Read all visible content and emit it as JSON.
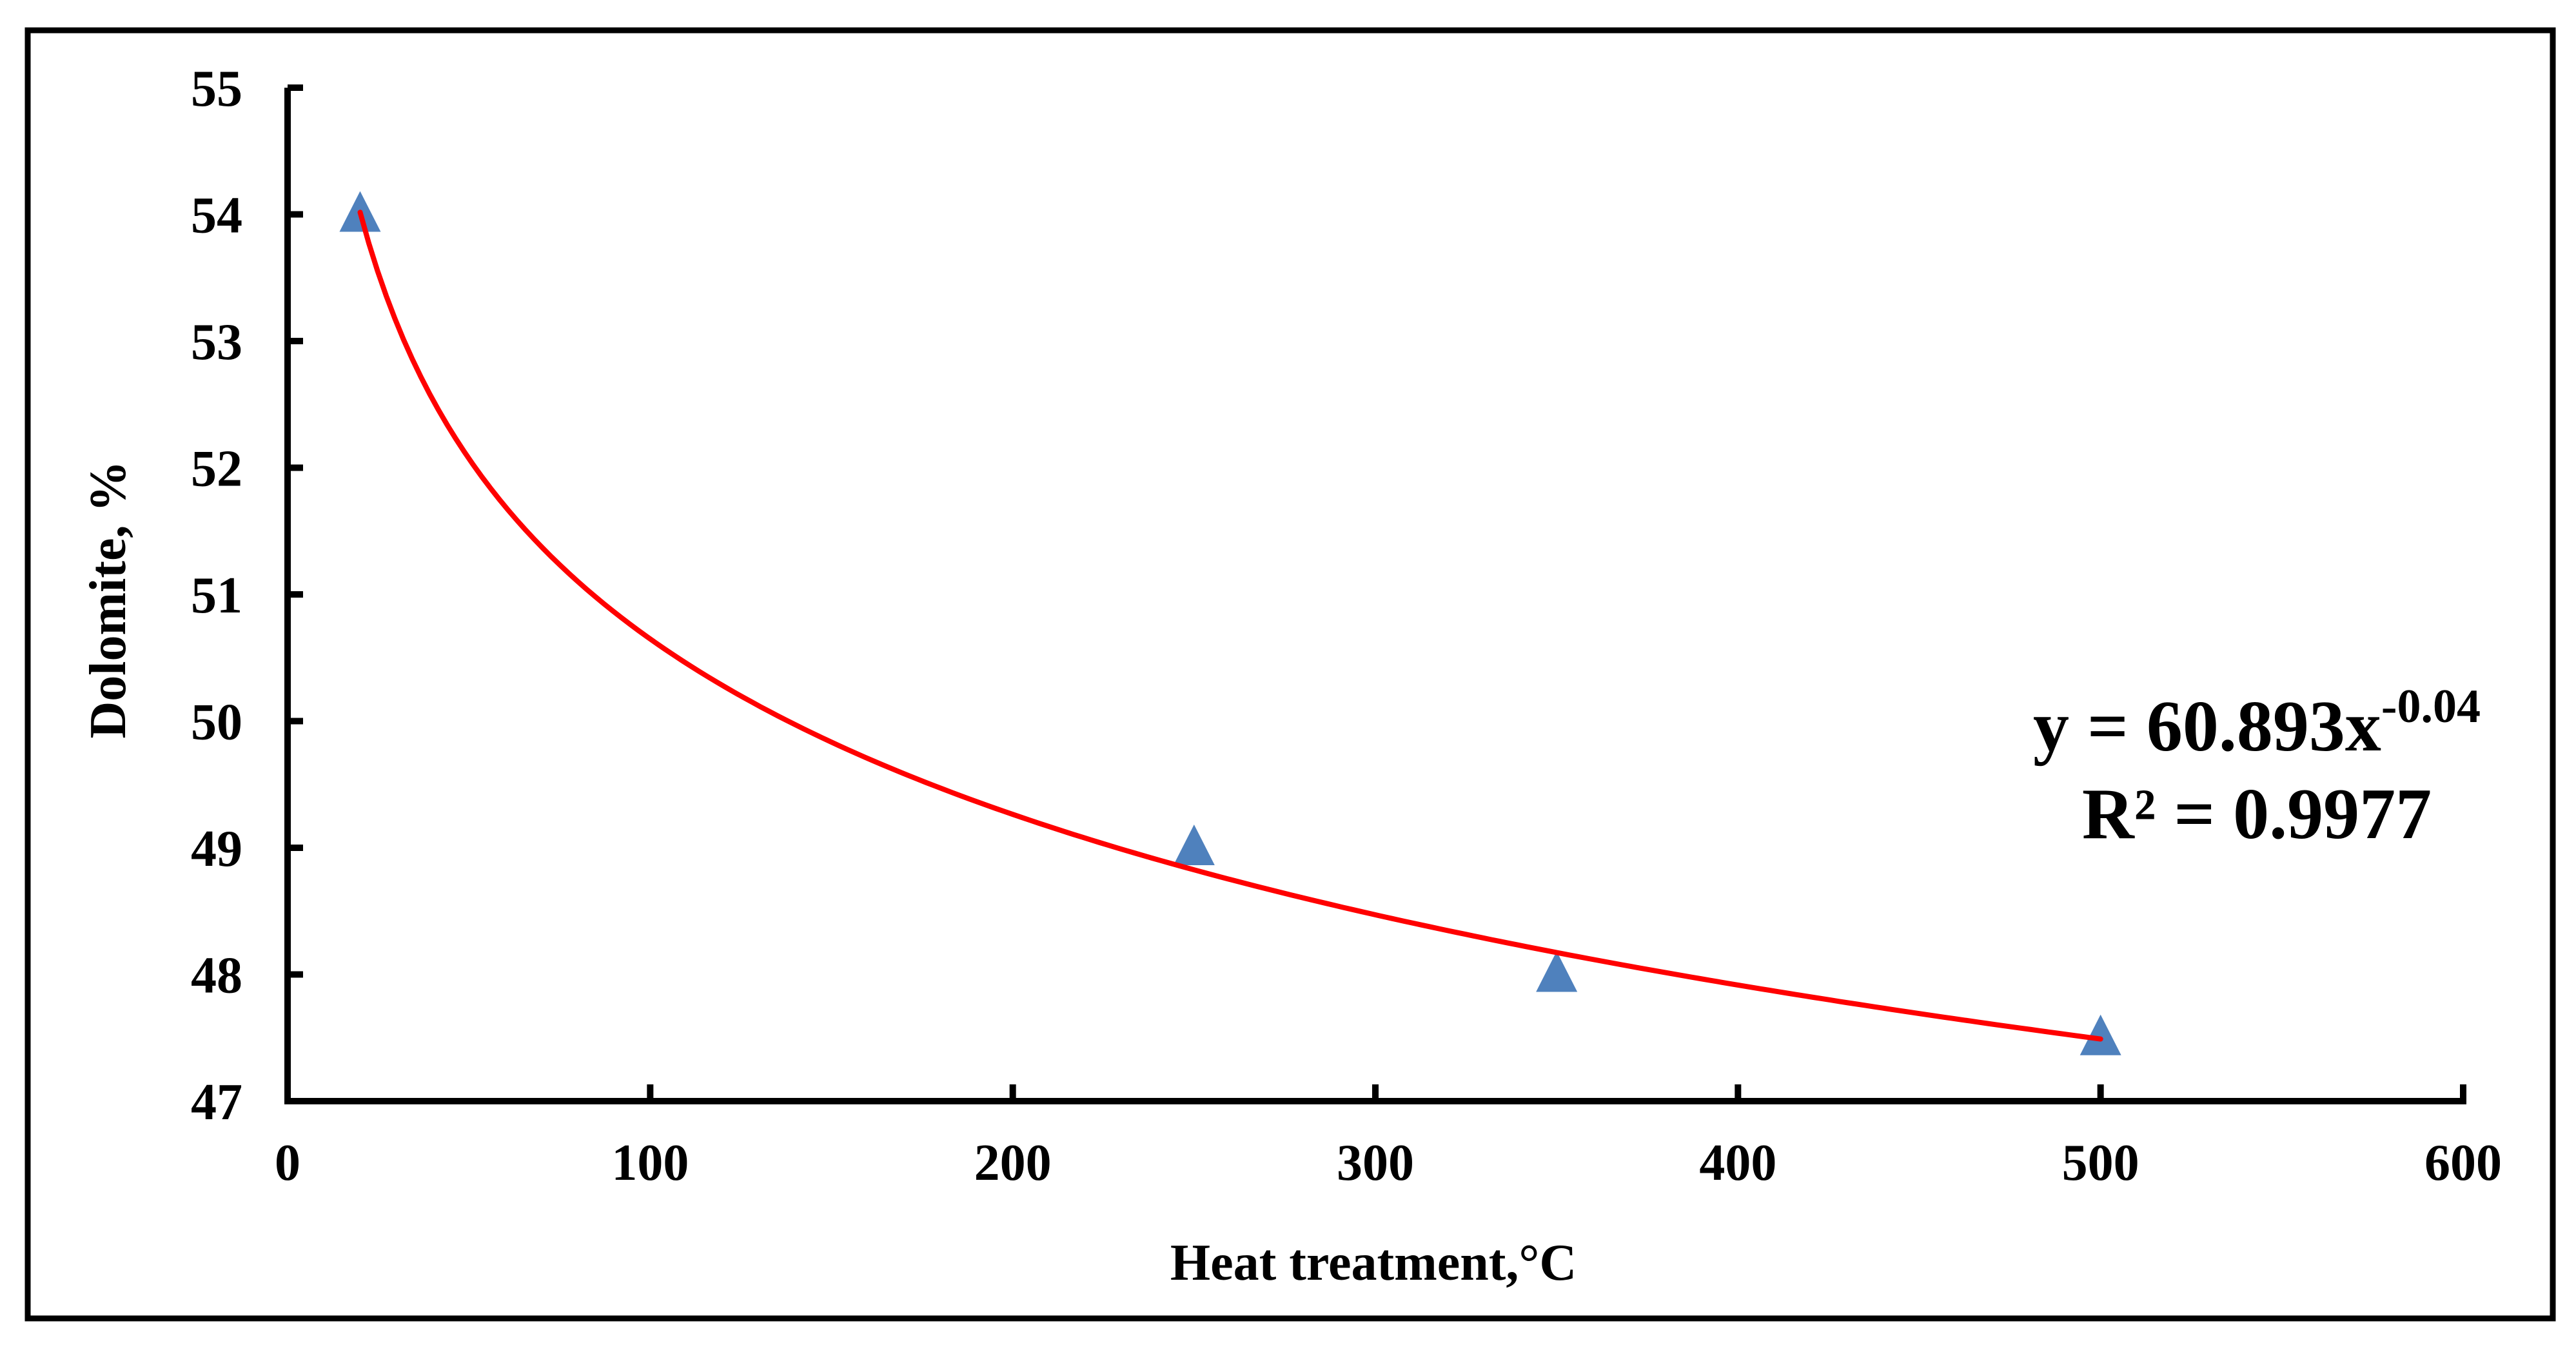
{
  "chart_data": {
    "type": "scatter",
    "title": "",
    "xlabel": "Heat treatment,°C",
    "ylabel": "Dolomite, %",
    "xlim": [
      0,
      600
    ],
    "ylim": [
      47,
      55
    ],
    "xticks": [
      "0",
      "100",
      "200",
      "300",
      "400",
      "500",
      "600"
    ],
    "yticks": [
      "47",
      "48",
      "49",
      "50",
      "51",
      "52",
      "53",
      "54",
      "55"
    ],
    "grid": false,
    "series": [
      {
        "name": "Dolomite",
        "marker": "triangle",
        "color": "#4F81BD",
        "x": [
          20,
          250,
          350,
          500
        ],
        "y": [
          54,
          49,
          48,
          47.5
        ]
      }
    ],
    "trendline": {
      "type": "power",
      "coefficient": 60.893,
      "exponent": -0.04,
      "color": "#FF0000",
      "x_range": [
        20,
        500
      ],
      "equation_main": "y = 60.893x",
      "equation_exponent": "-0.04",
      "r_squared_label": "R² = 0.9977"
    }
  }
}
